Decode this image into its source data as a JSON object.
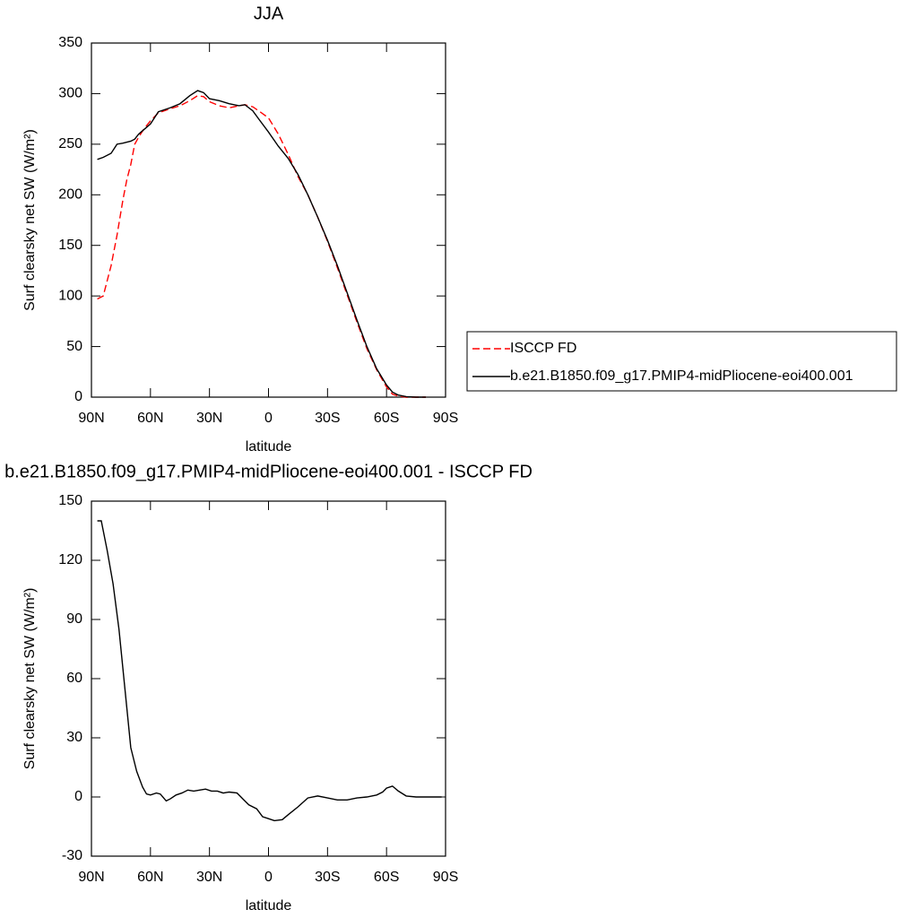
{
  "chart_data": [
    {
      "type": "line",
      "title": "JJA",
      "xlabel": "latitude",
      "ylabel": "Surf clearsky net SW (W/m²)",
      "x": [
        87,
        84,
        80,
        77,
        74,
        72,
        70,
        68,
        66,
        63,
        60,
        56,
        50,
        45,
        40,
        36,
        33,
        30,
        25,
        20,
        15,
        12,
        8,
        5,
        0,
        -5,
        -10,
        -15,
        -20,
        -25,
        -30,
        -35,
        -40,
        -45,
        -50,
        -55,
        -60,
        -63,
        -66,
        -70,
        -75,
        -80
      ],
      "series": [
        {
          "name": "ISCCP FD",
          "color": "#ff0000",
          "dashed": true,
          "values": [
            97,
            100,
            130,
            160,
            195,
            215,
            230,
            250,
            257,
            266,
            273,
            281,
            285,
            288,
            293,
            298,
            297,
            292,
            288,
            286,
            288,
            289,
            287,
            283,
            276,
            260,
            240,
            218,
            200,
            178,
            154,
            128,
            101,
            74,
            48,
            27,
            10,
            3,
            1,
            0,
            0,
            0
          ]
        },
        {
          "name": "b.e21.B1850.f09_g17.PMIP4-midPliocene-eoi400.001",
          "color": "#000000",
          "dashed": false,
          "values": [
            235,
            237,
            241,
            250,
            251,
            252,
            253,
            255,
            260,
            265,
            270,
            282,
            286,
            290,
            298,
            303,
            301,
            295,
            293,
            290,
            288,
            289,
            283,
            275,
            262,
            248,
            236,
            220,
            200,
            178,
            155,
            130,
            103,
            76,
            50,
            28,
            12,
            5,
            2,
            0.5,
            0,
            0
          ]
        }
      ],
      "xlim": [
        90,
        -90
      ],
      "xticks": [
        {
          "value": 90,
          "label": "90N"
        },
        {
          "value": 60,
          "label": "60N"
        },
        {
          "value": 30,
          "label": "30N"
        },
        0,
        {
          "value": -30,
          "label": "30S"
        },
        {
          "value": -60,
          "label": "60S"
        },
        {
          "value": -90,
          "label": "90S"
        }
      ],
      "ylim": [
        0,
        350
      ],
      "yticks": [
        0,
        50,
        100,
        150,
        200,
        250,
        300,
        350
      ],
      "legend": "right"
    },
    {
      "type": "line",
      "title": "b.e21.B1850.f09_g17.PMIP4-midPliocene-eoi400.001 - ISCCP FD",
      "xlabel": "latitude",
      "ylabel": "Surf clearsky net SW (W/m²)",
      "x": [
        87,
        85,
        82,
        79,
        76,
        73,
        70,
        67,
        64,
        62,
        60,
        57,
        55,
        52,
        50,
        47,
        44,
        41,
        38,
        35,
        32,
        29,
        26,
        23,
        20,
        16,
        13,
        10,
        6,
        3,
        0,
        -3,
        -7,
        -10,
        -15,
        -20,
        -25,
        -30,
        -35,
        -40,
        -45,
        -50,
        -55,
        -58,
        -60,
        -63,
        -66,
        -70,
        -75,
        -80,
        -85,
        -88
      ],
      "series": [
        {
          "color": "#000000",
          "dashed": false,
          "values": [
            140,
            140,
            125,
            108,
            85,
            55,
            25,
            13,
            5,
            1.5,
            1,
            2,
            1.5,
            -2,
            -1,
            1,
            2,
            3.5,
            3,
            3.5,
            4,
            3,
            3,
            2,
            2.5,
            2,
            -1,
            -4,
            -6,
            -10,
            -11,
            -12,
            -11.5,
            -9,
            -5,
            -0.5,
            0.5,
            -0.5,
            -1.5,
            -1.5,
            -0.5,
            0,
            1,
            2.5,
            4.5,
            5.5,
            3,
            0.5,
            0,
            0,
            0,
            0
          ]
        }
      ],
      "xlim": [
        90,
        -90
      ],
      "xticks": [
        {
          "value": 90,
          "label": "90N"
        },
        {
          "value": 60,
          "label": "60N"
        },
        {
          "value": 30,
          "label": "30N"
        },
        0,
        {
          "value": -30,
          "label": "30S"
        },
        {
          "value": -60,
          "label": "60S"
        },
        {
          "value": -90,
          "label": "90S"
        }
      ],
      "ylim": [
        -30,
        150
      ],
      "yticks": [
        -30,
        0,
        30,
        60,
        90,
        120,
        150
      ]
    }
  ]
}
